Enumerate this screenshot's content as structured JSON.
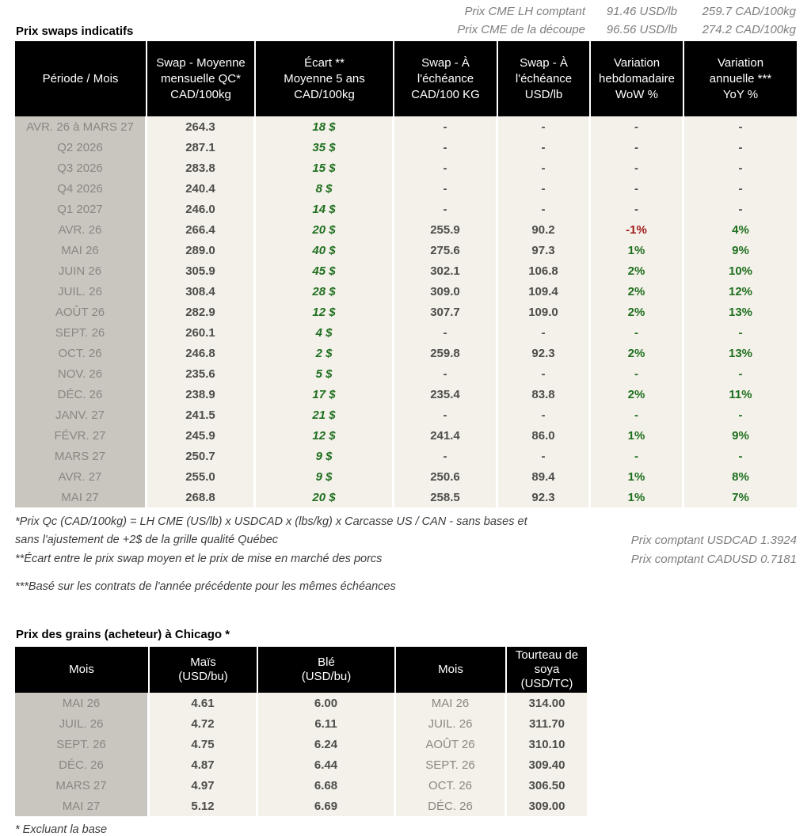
{
  "colors": {
    "positive_green": "#1e6f1e",
    "negative_red": "#a01d1d",
    "header_bg": "#000000",
    "row_label_bg": "#c9c6c0",
    "body_bg": "#f4f1ea"
  },
  "top_quotes": [
    {
      "label": "Prix CME LH comptant",
      "usd": "91.46 USD/lb",
      "cad": "259.7 CAD/100kg"
    },
    {
      "label": "Prix CME de la découpe",
      "usd": "96.56 USD/lb",
      "cad": "274.2 CAD/100kg"
    }
  ],
  "swaps": {
    "title": "Prix swaps indicatifs",
    "header_lines": [
      [
        "Période / Mois"
      ],
      [
        "Swap - Moyenne",
        "mensuelle QC*",
        "CAD/100kg"
      ],
      [
        "Écart **",
        "Moyenne 5 ans",
        "CAD/100kg"
      ],
      [
        "Swap - À",
        "l'échéance",
        "CAD/100 KG"
      ],
      [
        "Swap - À",
        "l'échéance",
        "USD/lb"
      ],
      [
        "Variation",
        "hebdomadaire",
        "WoW %"
      ],
      [
        "Variation",
        "annuelle ***",
        "YoY %"
      ]
    ],
    "rows": [
      {
        "p": "AVR. 26 à  MARS 27",
        "m": "264.3",
        "e": "18 $",
        "c": "-",
        "u": "-",
        "w": "-",
        "y": "-",
        "wc": "n",
        "yc": "n"
      },
      {
        "p": "Q2 2026",
        "m": "287.1",
        "e": "35 $",
        "c": "-",
        "u": "-",
        "w": "-",
        "y": "-",
        "wc": "n",
        "yc": "n"
      },
      {
        "p": "Q3 2026",
        "m": "283.8",
        "e": "15 $",
        "c": "-",
        "u": "-",
        "w": "-",
        "y": "-",
        "wc": "n",
        "yc": "n"
      },
      {
        "p": "Q4 2026",
        "m": "240.4",
        "e": "8 $",
        "c": "-",
        "u": "-",
        "w": "-",
        "y": "-",
        "wc": "n",
        "yc": "n"
      },
      {
        "p": "Q1 2027",
        "m": "246.0",
        "e": "14 $",
        "c": "-",
        "u": "-",
        "w": "-",
        "y": "-",
        "wc": "n",
        "yc": "n"
      },
      {
        "p": "AVR. 26",
        "m": "266.4",
        "e": "20 $",
        "c": "255.9",
        "u": "90.2",
        "w": "-1%",
        "y": "4%",
        "wc": "r",
        "yc": "g"
      },
      {
        "p": "MAI 26",
        "m": "289.0",
        "e": "40 $",
        "c": "275.6",
        "u": "97.3",
        "w": "1%",
        "y": "9%",
        "wc": "g",
        "yc": "g"
      },
      {
        "p": "JUIN 26",
        "m": "305.9",
        "e": "45 $",
        "c": "302.1",
        "u": "106.8",
        "w": "2%",
        "y": "10%",
        "wc": "g",
        "yc": "g"
      },
      {
        "p": "JUIL. 26",
        "m": "308.4",
        "e": "28 $",
        "c": "309.0",
        "u": "109.4",
        "w": "2%",
        "y": "12%",
        "wc": "g",
        "yc": "g"
      },
      {
        "p": "AOÛT 26",
        "m": "282.9",
        "e": "12 $",
        "c": "307.7",
        "u": "109.0",
        "w": "2%",
        "y": "13%",
        "wc": "g",
        "yc": "g"
      },
      {
        "p": "SEPT. 26",
        "m": "260.1",
        "e": "4 $",
        "c": "-",
        "u": "-",
        "w": "-",
        "y": "-",
        "wc": "g",
        "yc": "g"
      },
      {
        "p": "OCT. 26",
        "m": "246.8",
        "e": "2 $",
        "c": "259.8",
        "u": "92.3",
        "w": "2%",
        "y": "13%",
        "wc": "g",
        "yc": "g"
      },
      {
        "p": "NOV. 26",
        "m": "235.6",
        "e": "5 $",
        "c": "-",
        "u": "-",
        "w": "-",
        "y": "-",
        "wc": "g",
        "yc": "g"
      },
      {
        "p": "DÉC. 26",
        "m": "238.9",
        "e": "17 $",
        "c": "235.4",
        "u": "83.8",
        "w": "2%",
        "y": "11%",
        "wc": "g",
        "yc": "g"
      },
      {
        "p": "JANV. 27",
        "m": "241.5",
        "e": "21 $",
        "c": "-",
        "u": "-",
        "w": "-",
        "y": "-",
        "wc": "g",
        "yc": "g"
      },
      {
        "p": "FÉVR. 27",
        "m": "245.9",
        "e": "12 $",
        "c": "241.4",
        "u": "86.0",
        "w": "1%",
        "y": "9%",
        "wc": "g",
        "yc": "g"
      },
      {
        "p": "MARS 27",
        "m": "250.7",
        "e": "9 $",
        "c": "-",
        "u": "-",
        "w": "-",
        "y": "-",
        "wc": "g",
        "yc": "g"
      },
      {
        "p": "AVR. 27",
        "m": "255.0",
        "e": "9 $",
        "c": "250.6",
        "u": "89.4",
        "w": "1%",
        "y": "8%",
        "wc": "g",
        "yc": "g"
      },
      {
        "p": "MAI 27",
        "m": "268.8",
        "e": "20 $",
        "c": "258.5",
        "u": "92.3",
        "w": "1%",
        "y": "7%",
        "wc": "g",
        "yc": "g"
      }
    ]
  },
  "footnotes": [
    "*Prix Qc (CAD/100kg) = LH CME (US/lb) x USDCAD x (lbs/kg) x Carcasse US / CAN - sans bases et\nsans l'ajustement de +2$ de la grille qualité Québec",
    "**Écart entre le prix swap moyen et le prix de mise en marché des porcs",
    "***Basé sur les contrats de l'année précédente pour les mêmes échéances"
  ],
  "fx": [
    "Prix comptant USDCAD 1.3924",
    "Prix comptant CADUSD 0.7181"
  ],
  "grains": {
    "title": "Prix des grains (acheteur) à Chicago *",
    "header_lines": [
      [
        "Mois"
      ],
      [
        "Maïs",
        "(USD/bu)"
      ],
      [
        "Blé",
        "(USD/bu)"
      ],
      [
        "Mois"
      ],
      [
        "Tourteau de",
        "soya",
        "(USD/TC)"
      ]
    ],
    "rows": [
      {
        "mois1": "MAI 26",
        "mais": "4.61",
        "ble": "6.00",
        "mois2": "MAI 26",
        "tourteau": "314.00"
      },
      {
        "mois1": "JUIL. 26",
        "mais": "4.72",
        "ble": "6.11",
        "mois2": "JUIL. 26",
        "tourteau": "311.70"
      },
      {
        "mois1": "SEPT. 26",
        "mais": "4.75",
        "ble": "6.24",
        "mois2": "AOÛT 26",
        "tourteau": "310.10"
      },
      {
        "mois1": "DÉC. 26",
        "mais": "4.87",
        "ble": "6.44",
        "mois2": "SEPT. 26",
        "tourteau": "309.40"
      },
      {
        "mois1": "MARS 27",
        "mais": "4.97",
        "ble": "6.68",
        "mois2": "OCT. 26",
        "tourteau": "306.50"
      },
      {
        "mois1": "MAI 27",
        "mais": "5.12",
        "ble": "6.69",
        "mois2": "DÉC. 26",
        "tourteau": "309.00"
      }
    ],
    "footnote": "* Excluant la base"
  }
}
